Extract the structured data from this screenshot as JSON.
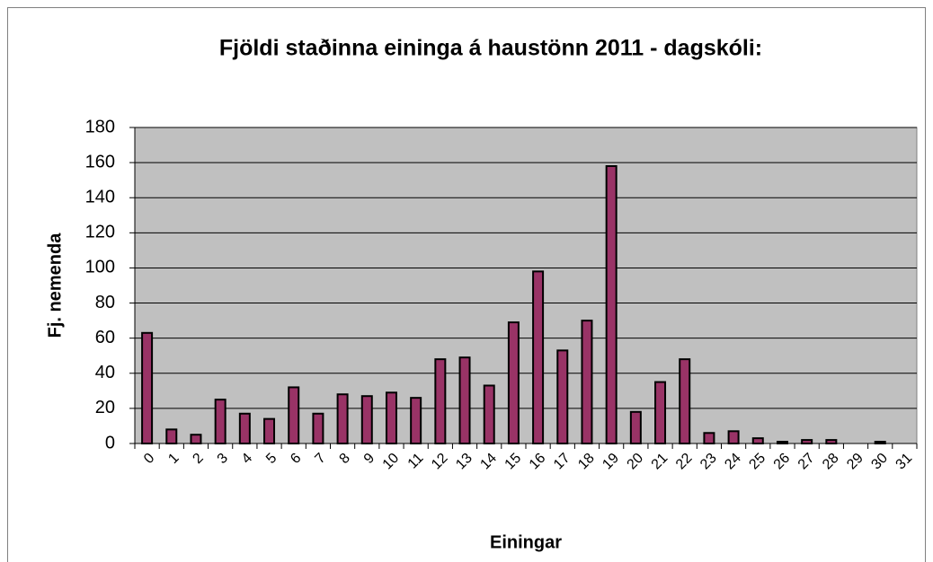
{
  "chart_data": {
    "type": "bar",
    "title": "Fjöldi staðinna eininga á haustönn 2011 - dagskóli:",
    "x_label": "Einingar",
    "y_label": "Fj. nemenda",
    "categories": [
      "0",
      "1",
      "2",
      "3",
      "4",
      "5",
      "6",
      "7",
      "8",
      "9",
      "10",
      "11",
      "12",
      "13",
      "14",
      "15",
      "16",
      "17",
      "18",
      "19",
      "20",
      "21",
      "22",
      "23",
      "24",
      "25",
      "26",
      "27",
      "28",
      "29",
      "30",
      "31"
    ],
    "values": [
      63,
      8,
      5,
      25,
      17,
      14,
      32,
      17,
      28,
      27,
      29,
      26,
      48,
      49,
      33,
      69,
      98,
      53,
      70,
      158,
      18,
      35,
      48,
      6,
      7,
      3,
      1,
      2,
      2,
      0,
      1,
      0
    ],
    "color": "#993366",
    "ylim": [
      0,
      180
    ],
    "yticks": [
      0,
      20,
      40,
      60,
      80,
      100,
      120,
      140,
      160,
      180
    ],
    "grid": true
  }
}
